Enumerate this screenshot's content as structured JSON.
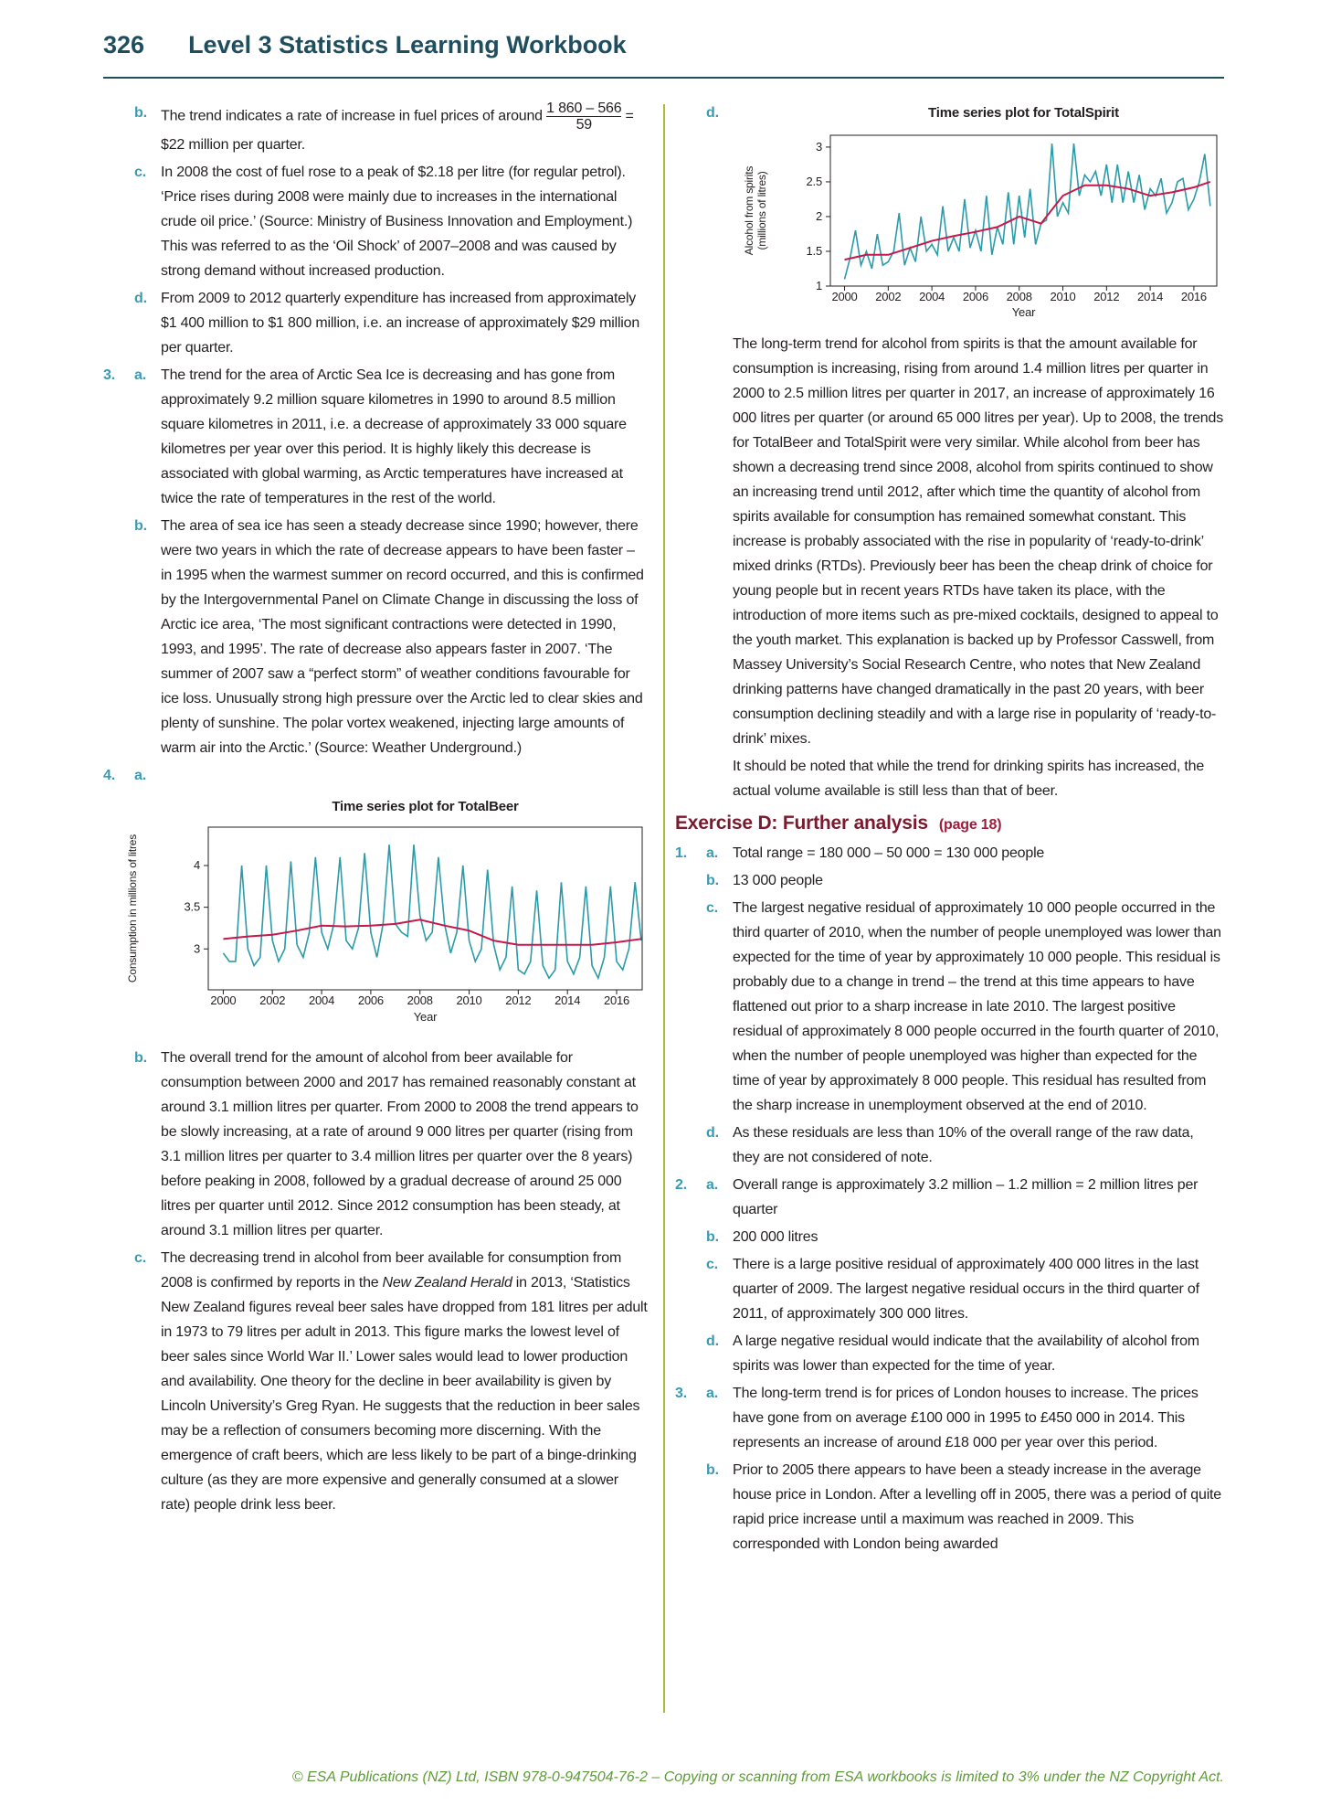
{
  "header": {
    "page_number": "326",
    "title": "Level 3 Statistics Learning Workbook"
  },
  "left": {
    "items": [
      {
        "letter": "b.",
        "text": "The trend indicates a rate of increase in fuel prices of around",
        "fraction": {
          "numerator": "1 860 – 566",
          "denominator": "59"
        },
        "text_after": "= $22 million per quarter."
      },
      {
        "letter": "c.",
        "text": "In 2008 the cost of fuel rose to a peak of $2.18 per litre (for regular petrol). ‘Price rises during 2008 were mainly due to increases in the international crude oil price.’ (Source: Ministry of Business Innovation and Employment.) This was referred to as the ‘Oil Shock’ of 2007–2008 and was caused by strong demand without increased production."
      },
      {
        "letter": "d.",
        "text": "From 2009 to 2012 quarterly expenditure has increased from approximately $1 400 million to $1 800 million, i.e. an increase of approximately $29 million per quarter."
      },
      {
        "number": "3.",
        "letter": "a.",
        "text": "The trend for the area of Arctic Sea Ice is decreasing and has gone from approximately 9.2 million square kilometres in 1990 to around 8.5 million square kilometres in 2011, i.e. a decrease of approximately 33 000 square kilometres per year over this period. It is highly likely this decrease is associated with global warming, as Arctic temperatures have increased at twice the rate of temperatures in the rest of the world."
      },
      {
        "letter": "b.",
        "text": "The area of sea ice has seen a steady decrease since 1990; however, there were two years in which the rate of decrease appears to have been faster – in 1995 when the warmest summer on record occurred, and this is confirmed by the Intergovernmental Panel on Climate Change in discussing the loss of Arctic ice area, ‘The most significant contractions were detected in 1990, 1993, and 1995’. The rate of decrease also appears faster in 2007. ‘The summer of 2007 saw a “perfect storm” of weather conditions favourable for ice loss. Unusually strong high pressure over the Arctic led to clear skies and plenty of sunshine. The polar vortex weakened, injecting large amounts of warm air into the Arctic.’ (Source: Weather Underground.)"
      },
      {
        "number": "4.",
        "letter": "a."
      },
      {
        "letter": "b.",
        "text": "The overall trend for the amount of alcohol from beer available for consumption between 2000 and 2017 has remained reasonably constant at around 3.1 million litres per quarter. From 2000 to 2008 the trend appears to be slowly increasing, at a rate of around 9 000 litres per quarter (rising from 3.1 million litres per quarter to 3.4 million litres per quarter over the 8 years) before peaking in 2008, followed by a gradual decrease of around 25 000 litres per quarter until 2012. Since 2012 consumption has been steady, at around 3.1 million litres per quarter."
      },
      {
        "letter": "c.",
        "text": "The decreasing trend in alcohol from beer available for consumption from 2008 is confirmed by reports in the",
        "emphasis": "New Zealand Herald",
        "text_after": "in 2013, ‘Statistics New Zealand figures reveal beer sales have dropped from 181 litres per adult in 1973 to 79 litres per adult in 2013. This figure marks the lowest level of beer sales since World War II.’ Lower sales would lead to lower production and availability. One theory for the decline in beer availability is given by Lincoln University’s Greg Ryan. He suggests that the reduction in beer sales may be a reflection of consumers becoming more discerning. With the emergence of craft beers, which are less likely to be part of a binge-drinking culture (as they are more expensive and generally consumed at a slower rate) people drink less beer."
      }
    ]
  },
  "right": {
    "chart_letter": "d.",
    "paragraphs": [
      "The long-term trend for alcohol from spirits is that the amount available for consumption is increasing, rising from around 1.4 million litres per quarter in 2000 to 2.5 million litres per quarter in 2017, an increase of approximately 16 000 litres per quarter (or around 65 000 litres per year). Up to 2008, the trends for TotalBeer and TotalSpirit were very similar. While alcohol from beer has shown a decreasing trend since 2008, alcohol from spirits continued to show an increasing trend until 2012, after which time the quantity of alcohol from spirits available for consumption has remained somewhat constant. This increase is probably associated with the rise in popularity of ‘ready-to-drink’ mixed drinks (RTDs). Previously beer has been the cheap drink of choice for young people but in recent years RTDs have taken its place, with the introduction of more items such as pre-mixed cocktails, designed to appeal to the youth market. This explanation is backed up by Professor Casswell, from Massey University’s Social Research Centre, who notes that New Zealand drinking patterns have changed dramatically in the past 20 years, with beer consumption declining steadily and with a large rise in popularity of ‘ready-to-drink’ mixes.",
      "It should be noted that while the trend for drinking spirits has increased, the actual volume available is still less than that of beer."
    ],
    "exercise": {
      "title": "Exercise D: Further analysis",
      "page": "(page 18)"
    },
    "items": [
      {
        "number": "1.",
        "letter": "a.",
        "text": "Total range = 180 000 – 50 000 = 130 000 people"
      },
      {
        "letter": "b.",
        "text": "13 000 people"
      },
      {
        "letter": "c.",
        "text": "The largest negative residual of approximately 10 000 people occurred in the third quarter of 2010, when the number of people unemployed was lower than expected for the time of year by approximately 10 000 people. This residual is probably due to a change in trend – the trend at this time appears to have flattened out prior to a sharp increase in late 2010. The largest positive residual of approximately 8 000 people occurred in the fourth quarter of 2010, when the number of people unemployed was higher than expected for the time of year by approximately 8 000 people. This residual has resulted from the sharp increase in unemployment observed at the end of 2010."
      },
      {
        "letter": "d.",
        "text": "As these residuals are less than 10% of the overall range of the raw data, they are not considered of note."
      },
      {
        "number": "2.",
        "letter": "a.",
        "text": "Overall range is approximately 3.2 million – 1.2 million = 2 million litres per quarter"
      },
      {
        "letter": "b.",
        "text": "200 000 litres"
      },
      {
        "letter": "c.",
        "text": "There is a large positive residual of approximately 400 000 litres in the last quarter of 2009. The largest negative residual occurs in the third quarter of 2011, of approximately 300 000 litres."
      },
      {
        "letter": "d.",
        "text": "A large negative residual would indicate that the availability of alcohol from spirits was lower than expected for the time of year."
      },
      {
        "number": "3.",
        "letter": "a.",
        "text": "The long-term trend is for prices of London houses to increase. The prices have gone from on average £100 000 in 1995 to £450 000 in 2014. This represents an increase of around £18 000 per year over this period."
      },
      {
        "letter": "b.",
        "text": "Prior to 2005 there appears to have been a steady increase in the average house price in London. After a levelling off in 2005, there was a period of quite rapid price increase until a maximum was reached in 2009. This corresponded with London being awarded"
      }
    ]
  },
  "footer": "© ESA Publications (NZ) Ltd, ISBN 978-0-947504-76-2 – Copying or scanning from ESA workbooks is limited to 3% under the NZ Copyright Act.",
  "chart_data": [
    {
      "type": "line",
      "title": "Time series plot for TotalBeer",
      "x_label": "Year",
      "y_label": "Consumption in millions of litres",
      "xlim": [
        1999.39,
        2017.04
      ],
      "xticks": [
        2000,
        2002,
        2004,
        2006,
        2008,
        2010,
        2012,
        2014,
        2016
      ],
      "ylim": [
        2.51,
        4.46
      ],
      "yticks": [
        3,
        3.5,
        4
      ],
      "series": [
        {
          "color": "#2b9ba8",
          "x": [
            2000,
            2000.25,
            2000.5,
            2000.75,
            2001,
            2001.25,
            2001.5,
            2001.75,
            2002,
            2002.25,
            2002.5,
            2002.75,
            2003,
            2003.25,
            2003.5,
            2003.75,
            2004,
            2004.25,
            2004.5,
            2004.75,
            2005,
            2005.25,
            2005.5,
            2005.75,
            2006,
            2006.25,
            2006.5,
            2006.75,
            2007,
            2007.25,
            2007.5,
            2007.75,
            2008,
            2008.25,
            2008.5,
            2008.75,
            2009,
            2009.25,
            2009.5,
            2009.75,
            2010,
            2010.25,
            2010.5,
            2010.75,
            2011,
            2011.25,
            2011.5,
            2011.75,
            2012,
            2012.25,
            2012.5,
            2012.75,
            2013,
            2013.25,
            2013.5,
            2013.75,
            2014,
            2014.25,
            2014.5,
            2014.75,
            2015,
            2015.25,
            2015.5,
            2015.75,
            2016,
            2016.25,
            2016.5,
            2016.75,
            2017
          ],
          "values": [
            2.95,
            2.85,
            2.85,
            4.0,
            3.0,
            2.8,
            2.9,
            4.0,
            3.1,
            2.85,
            3.0,
            4.05,
            3.05,
            2.9,
            3.2,
            4.1,
            3.2,
            3.0,
            3.3,
            4.1,
            3.1,
            3.0,
            3.25,
            4.15,
            3.2,
            2.9,
            3.3,
            4.25,
            3.3,
            3.2,
            3.15,
            4.25,
            3.4,
            3.1,
            3.2,
            4.1,
            3.3,
            2.95,
            3.2,
            4.0,
            3.1,
            2.85,
            3.0,
            3.95,
            3.05,
            2.75,
            2.9,
            3.75,
            2.75,
            2.7,
            2.85,
            3.7,
            2.8,
            2.65,
            2.75,
            3.8,
            2.85,
            2.7,
            2.9,
            3.75,
            2.8,
            2.65,
            2.9,
            3.75,
            2.85,
            2.75,
            3.0,
            3.8,
            3.1
          ]
        },
        {
          "color": "#c8174a",
          "x": [
            2000,
            2001,
            2002,
            2003,
            2004,
            2005,
            2006,
            2007,
            2008,
            2009,
            2010,
            2011,
            2012,
            2013,
            2014,
            2015,
            2016,
            2017
          ],
          "values": [
            3.12,
            3.15,
            3.17,
            3.22,
            3.28,
            3.27,
            3.28,
            3.3,
            3.35,
            3.28,
            3.22,
            3.1,
            3.05,
            3.05,
            3.05,
            3.05,
            3.08,
            3.12
          ]
        }
      ]
    },
    {
      "type": "line",
      "title": "Time series plot for TotalSpirit",
      "x_label": "Year",
      "y_label": [
        "Alcohol from spirits",
        "(millions of litres)"
      ],
      "xlim": [
        1999.35,
        2017.05
      ],
      "xticks": [
        2000,
        2002,
        2004,
        2006,
        2008,
        2010,
        2012,
        2014,
        2016
      ],
      "ylim": [
        1,
        3.17
      ],
      "yticks": [
        1,
        1.5,
        2,
        2.5,
        3
      ],
      "series": [
        {
          "color": "#2b9ba8",
          "x": [
            2000,
            2000.25,
            2000.5,
            2000.75,
            2001,
            2001.25,
            2001.5,
            2001.75,
            2002,
            2002.25,
            2002.5,
            2002.75,
            2003,
            2003.25,
            2003.5,
            2003.75,
            2004,
            2004.25,
            2004.5,
            2004.75,
            2005,
            2005.25,
            2005.5,
            2005.75,
            2006,
            2006.25,
            2006.5,
            2006.75,
            2007,
            2007.25,
            2007.5,
            2007.75,
            2008,
            2008.25,
            2008.5,
            2008.75,
            2009,
            2009.25,
            2009.5,
            2009.75,
            2010,
            2010.25,
            2010.5,
            2010.75,
            2011,
            2011.25,
            2011.5,
            2011.75,
            2012,
            2012.25,
            2012.5,
            2012.75,
            2013,
            2013.25,
            2013.5,
            2013.75,
            2014,
            2014.25,
            2014.5,
            2014.75,
            2015,
            2015.25,
            2015.5,
            2015.75,
            2016,
            2016.25,
            2016.5,
            2016.75
          ],
          "values": [
            1.1,
            1.4,
            1.8,
            1.3,
            1.5,
            1.25,
            1.75,
            1.3,
            1.35,
            1.5,
            2.05,
            1.3,
            1.55,
            1.35,
            2.0,
            1.5,
            1.6,
            1.45,
            2.15,
            1.5,
            1.7,
            1.5,
            2.25,
            1.55,
            1.8,
            1.5,
            2.3,
            1.45,
            1.85,
            1.6,
            2.35,
            1.6,
            2.3,
            1.7,
            2.4,
            1.6,
            1.9,
            1.95,
            3.05,
            2.0,
            2.2,
            2.05,
            3.05,
            2.3,
            2.6,
            2.5,
            2.65,
            2.3,
            2.75,
            2.2,
            2.75,
            2.2,
            2.65,
            2.2,
            2.6,
            2.1,
            2.4,
            2.3,
            2.55,
            2.05,
            2.2,
            2.5,
            2.55,
            2.1,
            2.25,
            2.5,
            2.9,
            2.15
          ]
        },
        {
          "color": "#c8174a",
          "x": [
            2000,
            2001,
            2002,
            2003,
            2004,
            2005,
            2006,
            2007,
            2008,
            2009,
            2010,
            2011,
            2012,
            2013,
            2014,
            2015,
            2016,
            2016.75
          ],
          "values": [
            1.38,
            1.45,
            1.45,
            1.55,
            1.65,
            1.72,
            1.78,
            1.85,
            2.0,
            1.9,
            2.3,
            2.45,
            2.45,
            2.4,
            2.3,
            2.35,
            2.42,
            2.5
          ]
        }
      ]
    }
  ]
}
